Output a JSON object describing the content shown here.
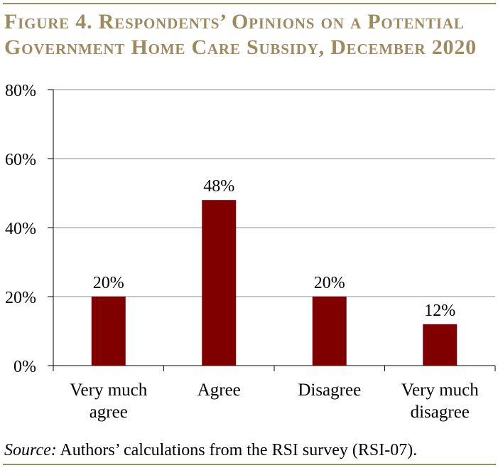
{
  "figure": {
    "title_line1": "Figure 4. Respondents’ Opinions on a Potential",
    "title_line2": "Government Home Care Subsidy, December 2020",
    "source_label": "Source:",
    "source_text": " Authors’ calculations from the RSI survey (RSI-07)."
  },
  "colors": {
    "bar": "#800000",
    "title": "#9e8a5f",
    "grid": "#8c8c8c",
    "rule": "#9e8a5f"
  },
  "chart_data": {
    "type": "bar",
    "categories": [
      [
        "Very much",
        "agree"
      ],
      [
        "Agree"
      ],
      [
        "Disagree"
      ],
      [
        "Very much",
        "disagree"
      ]
    ],
    "values": [
      20,
      48,
      20,
      12
    ],
    "data_labels": [
      "20%",
      "48%",
      "20%",
      "12%"
    ],
    "title": "Figure 4. Respondents’ Opinions on a Potential Government Home Care Subsidy, December 2020",
    "xlabel": "",
    "ylabel": "",
    "ylim": [
      0,
      80
    ],
    "yticks": [
      0,
      20,
      40,
      60,
      80
    ],
    "ytick_labels": [
      "0%",
      "20%",
      "40%",
      "60%",
      "80%"
    ],
    "grid": true,
    "legend": "none"
  }
}
